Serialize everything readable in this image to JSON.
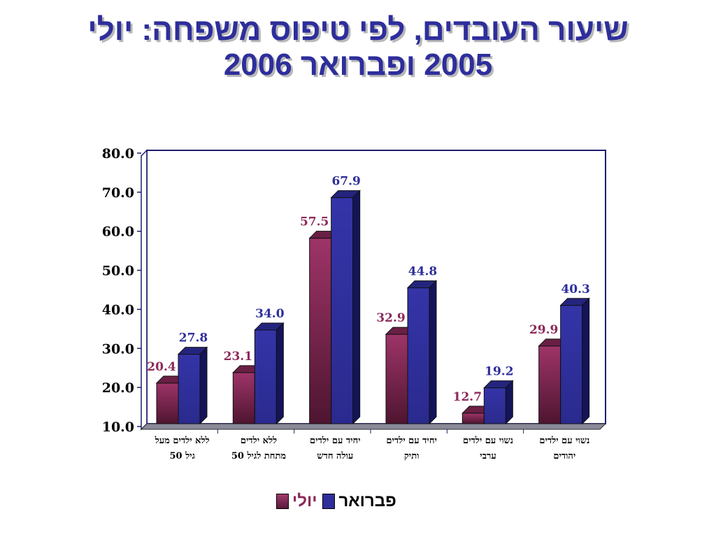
{
  "title": {
    "line1": "שיעור העובדים, לפי טיפוס משפחה: יולי",
    "line2": "2005 ופברואר 2006"
  },
  "colors": {
    "july": "#8b2a5a",
    "february": "#2e2e9c",
    "july_label": "#8b2a5a",
    "february_label": "#2e2e9c",
    "title": "#2e2e9c"
  },
  "chart_data": {
    "type": "bar",
    "categories": [
      [
        "ללא ילדים מעל",
        "גיל 50"
      ],
      [
        "ללא ילדים",
        "מתחת לגיל 50"
      ],
      [
        "יחיד עם ילדים",
        "עולה חדש"
      ],
      [
        "יחיד עם ילדים",
        "ותיק"
      ],
      [
        "נשוי עם ילדים",
        "ערבי"
      ],
      [
        "נשוי עם ילדים",
        "יהודים"
      ]
    ],
    "series": [
      {
        "name": "יולי",
        "values": [
          20.4,
          23.1,
          57.5,
          32.9,
          12.7,
          29.9
        ]
      },
      {
        "name": "פברואר",
        "values": [
          27.8,
          34.0,
          67.9,
          44.8,
          19.2,
          40.3
        ]
      }
    ],
    "yticks": [
      "10.0",
      "20.0",
      "30.0",
      "40.0",
      "50.0",
      "60.0",
      "70.0",
      "80.0"
    ],
    "ylim": [
      10,
      80
    ],
    "style": "3d-clustered-column",
    "legend_position": "bottom",
    "grid": false
  }
}
